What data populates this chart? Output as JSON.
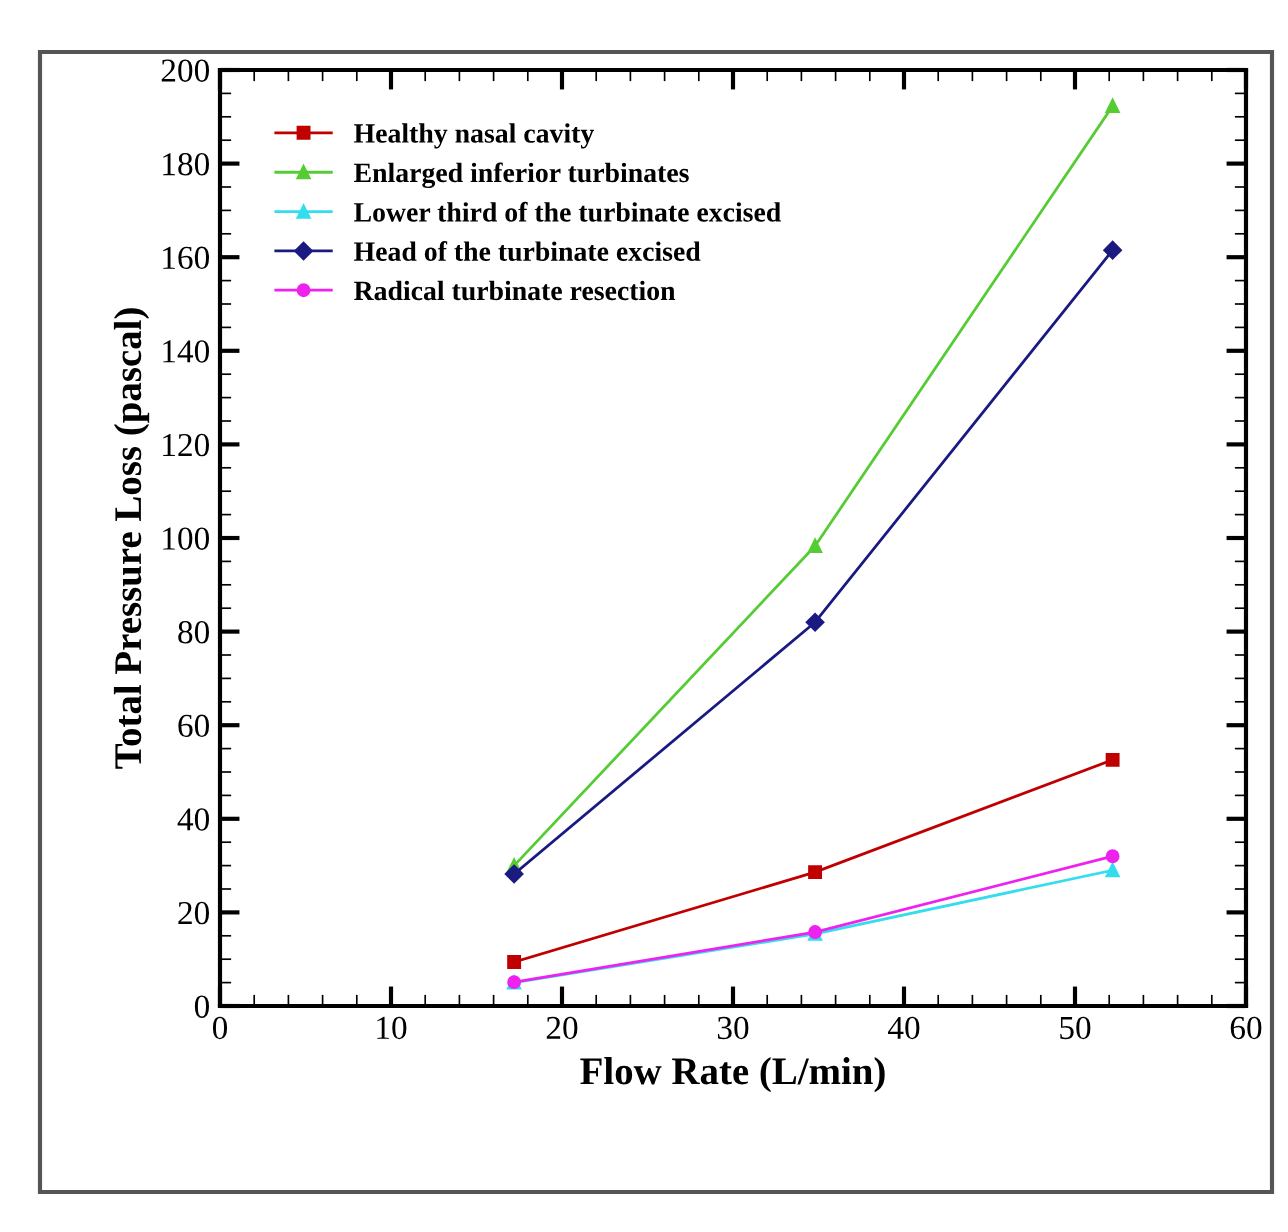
{
  "chart_data": {
    "type": "line",
    "xlabel": "Flow Rate (L/min)",
    "ylabel": "Total Pressure Loss (pascal)",
    "x": [
      17.2,
      34.8,
      52.2
    ],
    "series": [
      {
        "name": "Healthy nasal cavity",
        "color": "#c00000",
        "marker": "square",
        "values": [
          9.4,
          28.6,
          52.6
        ]
      },
      {
        "name": "Enlarged inferior turbinates",
        "color": "#55cc33",
        "marker": "triangle",
        "values": [
          30,
          98.3,
          192.3
        ]
      },
      {
        "name": "Lower third of the turbinate excised",
        "color": "#33ddee",
        "marker": "triangle",
        "values": [
          5,
          15.4,
          29
        ]
      },
      {
        "name": "Head of the turbinate excised",
        "color": "#1a1a80",
        "marker": "diamond",
        "values": [
          28.2,
          82,
          161.5
        ]
      },
      {
        "name": "Radical turbinate resection",
        "color": "#ee22ee",
        "marker": "circle",
        "values": [
          5.1,
          15.8,
          32
        ]
      }
    ],
    "xlim": [
      0,
      60
    ],
    "xticks": [
      0,
      10,
      20,
      30,
      40,
      50,
      60
    ],
    "ylim": [
      0,
      200
    ],
    "yticks": [
      0,
      20,
      40,
      60,
      80,
      100,
      120,
      140,
      160,
      180,
      200
    ],
    "grid": false,
    "legend": "top left",
    "line_style": "solid"
  }
}
